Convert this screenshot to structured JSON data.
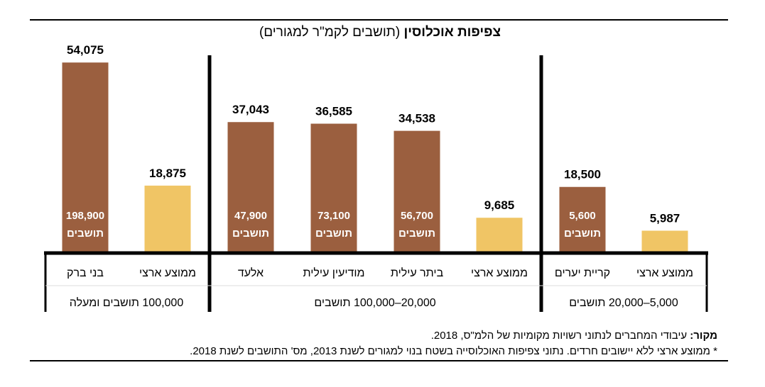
{
  "colors": {
    "town": "#9b5f3f",
    "national": "#f0c565",
    "axis": "#000000"
  },
  "chart_data": {
    "type": "bar",
    "title_bold": "צפיפות אוכלוסין",
    "title_rest": "(תושבים לקמ\"ר למגורים)",
    "ylim": [
      0,
      55000
    ],
    "grid": false,
    "categories": [
      "בני ברק",
      "ממוצע ארצי",
      "אלעד",
      "מודיעין עילית",
      "ביתר עילית",
      "ממוצע ארצי",
      "קריית יערים",
      "ממוצע ארצי"
    ],
    "values": [
      54075,
      18875,
      37043,
      36585,
      34538,
      9685,
      18500,
      5987
    ],
    "value_labels": [
      "54,075",
      "18,875",
      "37,043",
      "36,585",
      "34,538",
      "9,685",
      "18,500",
      "5,987"
    ],
    "kinds": [
      "town",
      "national",
      "town",
      "town",
      "town",
      "national",
      "town",
      "national"
    ],
    "residents": [
      "198,900",
      "",
      "47,900",
      "73,100",
      "56,700",
      "",
      "5,600",
      ""
    ],
    "residents_unit": "תושבים",
    "groups": [
      {
        "label": "100,000 תושבים ומעלה",
        "members": [
          0,
          1
        ]
      },
      {
        "label": "20,000–100,000 תושבים",
        "members": [
          2,
          3,
          4,
          5
        ]
      },
      {
        "label": "5,000–20,000 תושבים",
        "members": [
          6,
          7
        ]
      }
    ]
  },
  "source": {
    "label": "מקור:",
    "text": " עיבודי המחברים לנתוני רשויות מקומיות של הלמ\"ס, 2018."
  },
  "footnote": "* ממוצע ארצי ללא יישובים חרדים. נתוני צפיפות האוכלוסייה בשטח בנוי למגורים לשנת 2013, מס' התושבים לשנת 2018."
}
